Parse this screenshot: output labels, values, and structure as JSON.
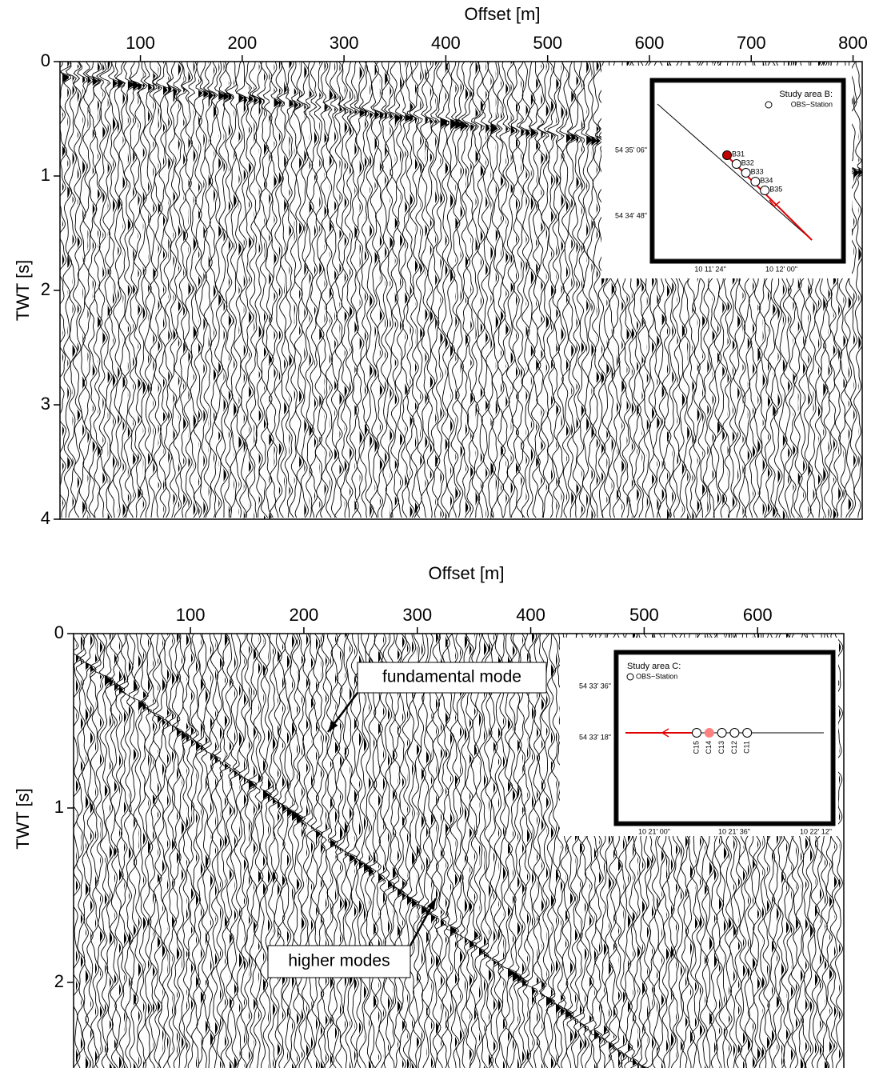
{
  "chart_data": [
    {
      "type": "seismic",
      "x_label": "Offset [m]",
      "y_label": "TWT [s]",
      "xlim": [
        21,
        809
      ],
      "xticks": [
        100,
        200,
        300,
        400,
        500,
        600,
        700,
        800
      ],
      "ylim": [
        0,
        4
      ],
      "yticks": [
        0,
        1,
        2,
        3,
        4
      ],
      "inset": {
        "title": "Study area B:",
        "legend": "OBS−Station",
        "lat_labels": [
          "54  35' 06\"",
          "54  34' 48\""
        ],
        "lon_labels": [
          "10  11' 24\"",
          "10  12' 00\""
        ],
        "stations": [
          {
            "name": "B31",
            "color": "#c00000"
          },
          {
            "name": "B32",
            "color": "#ffffff"
          },
          {
            "name": "B33",
            "color": "#ffffff"
          },
          {
            "name": "B34",
            "color": "#ffffff"
          },
          {
            "name": "B35",
            "color": "#ffffff"
          }
        ]
      }
    },
    {
      "type": "seismic",
      "x_label": "Offset [m]",
      "y_label": "TWT [s]",
      "xlim": [
        -3,
        676
      ],
      "xticks": [
        100,
        200,
        300,
        400,
        500,
        600
      ],
      "ylim": [
        0,
        2.5
      ],
      "yticks": [
        0,
        1,
        2
      ],
      "annotations": [
        {
          "text": "fundamental mode"
        },
        {
          "text": "higher modes"
        }
      ],
      "inset": {
        "title": "Study area C:",
        "legend": "OBS−Station",
        "lat_labels": [
          "54  33' 36\"",
          "54  33' 18\""
        ],
        "lon_labels": [
          "10  21' 00\"",
          "10  21' 36\"",
          "10  22' 12\""
        ],
        "stations": [
          {
            "name": "C15",
            "color": "#ffffff"
          },
          {
            "name": "C14",
            "color": "#ff8080"
          },
          {
            "name": "C13",
            "color": "#ffffff"
          },
          {
            "name": "C12",
            "color": "#ffffff"
          },
          {
            "name": "C11",
            "color": "#ffffff"
          }
        ]
      }
    }
  ]
}
